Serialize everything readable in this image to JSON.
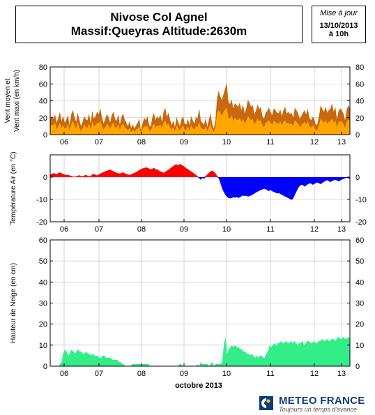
{
  "header": {
    "title_line1": "Nivose Col Agnel",
    "title_line2": "Massif:Queyras Altitude:2630m",
    "update_label": "Mise à jour",
    "update_date": "13/10/2013",
    "update_time": "à 10h"
  },
  "footer": {
    "brand": "METEO FRANCE",
    "tagline": "Toujours un temps d'avance",
    "brand_color": "#0b3d7a"
  },
  "x_axis": {
    "day_labels": [
      "06",
      "07",
      "08",
      "09",
      "10",
      "11",
      "12",
      "13"
    ],
    "month_label": "octobre 2013"
  },
  "chart_data": [
    {
      "type": "area",
      "ylabel": "Vent moyen et Vent maxi (en km/h)",
      "ylim": [
        0,
        80
      ],
      "yticks": [
        0,
        20,
        40,
        60,
        80
      ],
      "grid": true,
      "colors": {
        "max": "#c8690f",
        "mean": "#ffa500"
      },
      "series": [
        {
          "key": "max",
          "values": [
            17,
            22,
            19,
            24,
            14,
            20,
            27,
            16,
            22,
            14,
            18,
            23,
            11,
            24,
            29,
            21,
            15,
            26,
            18,
            10,
            15,
            22,
            18,
            17,
            25,
            13,
            28,
            19,
            22,
            27,
            24,
            31,
            20,
            13,
            19,
            24,
            21,
            14,
            23,
            27,
            19,
            16,
            24,
            12,
            21,
            25,
            18,
            14,
            10,
            16,
            8,
            12,
            7,
            11,
            14,
            19,
            5,
            13,
            20,
            17,
            22,
            12,
            9,
            20,
            26,
            17,
            22,
            19,
            24,
            15,
            27,
            32,
            21,
            26,
            18,
            11,
            17,
            9,
            21,
            15,
            10,
            18,
            22,
            13,
            12,
            19,
            11,
            22,
            17,
            13,
            21,
            19,
            31,
            16,
            14,
            12,
            20,
            9,
            18,
            25,
            13,
            7,
            17,
            43,
            52,
            45,
            41,
            48,
            55,
            61,
            39,
            36,
            42,
            31,
            37,
            35,
            33,
            38,
            29,
            36,
            25,
            31,
            41,
            38,
            33,
            35,
            24,
            28,
            36,
            30,
            33,
            22,
            19,
            26,
            28,
            32,
            27,
            23,
            31,
            29,
            26,
            25,
            30,
            22,
            29,
            33,
            25,
            27,
            24,
            26,
            20,
            32,
            29,
            25,
            19,
            22,
            26,
            29,
            24,
            31,
            20,
            17,
            21,
            19,
            11,
            13,
            23,
            35,
            30,
            27,
            33,
            26,
            29,
            31,
            37,
            27,
            33,
            18,
            28,
            31,
            29,
            25,
            17,
            29,
            35,
            30
          ]
        },
        {
          "key": "mean",
          "values": [
            9,
            12,
            11,
            14,
            6,
            10,
            14,
            8,
            11,
            7,
            8,
            13,
            5,
            12,
            16,
            11,
            7,
            15,
            8,
            4,
            7,
            12,
            9,
            8,
            13,
            6,
            15,
            10,
            11,
            14,
            13,
            16,
            10,
            6,
            9,
            13,
            11,
            7,
            12,
            14,
            9,
            8,
            13,
            6,
            11,
            13,
            9,
            7,
            5,
            8,
            3,
            6,
            3,
            6,
            7,
            10,
            2,
            7,
            10,
            9,
            11,
            6,
            4,
            10,
            13,
            8,
            11,
            10,
            12,
            8,
            14,
            17,
            11,
            13,
            9,
            6,
            9,
            4,
            11,
            8,
            5,
            9,
            11,
            6,
            6,
            10,
            5,
            11,
            8,
            6,
            10,
            9,
            15,
            8,
            7,
            6,
            10,
            4,
            9,
            13,
            6,
            3,
            9,
            24,
            29,
            26,
            22,
            27,
            30,
            32,
            20,
            19,
            23,
            16,
            20,
            18,
            17,
            20,
            15,
            19,
            13,
            16,
            22,
            20,
            17,
            19,
            12,
            15,
            19,
            16,
            17,
            11,
            9,
            14,
            15,
            17,
            14,
            12,
            16,
            15,
            13,
            13,
            16,
            11,
            15,
            17,
            13,
            14,
            12,
            13,
            10,
            17,
            15,
            13,
            9,
            11,
            13,
            15,
            12,
            16,
            10,
            8,
            11,
            9,
            5,
            6,
            12,
            19,
            16,
            14,
            17,
            13,
            15,
            16,
            19,
            14,
            17,
            9,
            15,
            16,
            15,
            13,
            8,
            15,
            18,
            16
          ]
        }
      ]
    },
    {
      "type": "area",
      "ylabel": "Température Air (en °C)",
      "ylim": [
        -20,
        10
      ],
      "yticks": [
        -20,
        -10,
        0
      ],
      "grid": true,
      "colors": {
        "positive": "#ff0000",
        "negative": "#0000ff"
      },
      "series": [
        {
          "key": "temperature",
          "values": [
            1.2,
            1.5,
            1.8,
            1.6,
            1.3,
            1.9,
            2.1,
            1.8,
            1.4,
            1.2,
            0.9,
            1.1,
            0.8,
            0.6,
            0.3,
            0.2,
            0.4,
            0.6,
            0.9,
            0.5,
            0.3,
            0.8,
            1.0,
            0.7,
            0.4,
            0.6,
            1.2,
            1.5,
            1.0,
            0.8,
            1.3,
            1.6,
            2.0,
            2.3,
            2.6,
            2.9,
            3.1,
            3.4,
            3.0,
            2.7,
            2.3,
            2.0,
            1.8,
            1.6,
            1.9,
            2.2,
            1.7,
            1.4,
            1.2,
            1.0,
            1.3,
            1.6,
            1.9,
            2.3,
            2.7,
            3.2,
            3.6,
            3.9,
            4.1,
            4.4,
            4.2,
            3.9,
            3.5,
            3.8,
            4.1,
            3.7,
            3.4,
            3.0,
            2.6,
            2.3,
            2.0,
            2.4,
            2.9,
            3.4,
            3.9,
            4.4,
            5.0,
            5.5,
            5.8,
            5.3,
            5.9,
            5.6,
            5.1,
            4.6,
            4.0,
            3.6,
            3.1,
            2.6,
            2.1,
            1.6,
            1.0,
            0.4,
            -0.5,
            -1.2,
            -0.3,
            -0.8,
            0.6,
            1.2,
            2.0,
            2.6,
            2.9,
            2.5,
            1.8,
            0.6,
            -0.5,
            -2.5,
            -4.8,
            -6.5,
            -7.8,
            -8.8,
            -9.3,
            -9.5,
            -9.4,
            -9.0,
            -9.2,
            -8.9,
            -9.3,
            -9.1,
            -8.6,
            -8.2,
            -8.5,
            -8.3,
            -8.7,
            -8.5,
            -8.2,
            -7.8,
            -7.4,
            -6.9,
            -6.5,
            -6.2,
            -5.8,
            -5.5,
            -5.2,
            -5.4,
            -5.9,
            -6.2,
            -5.8,
            -6.3,
            -6.6,
            -6.9,
            -7.3,
            -7.1,
            -7.5,
            -7.9,
            -8.3,
            -8.7,
            -9.0,
            -9.4,
            -9.8,
            -10.2,
            -9.6,
            -8.0,
            -6.5,
            -5.0,
            -4.0,
            -3.4,
            -3.6,
            -4.2,
            -3.8,
            -3.2,
            -2.8,
            -2.9,
            -3.4,
            -3.1,
            -2.6,
            -2.4,
            -2.8,
            -3.1,
            -2.6,
            -2.1,
            -1.6,
            -1.4,
            -1.8,
            -2.2,
            -1.8,
            -1.4,
            -1.2,
            -1.5,
            -1.9,
            -1.5,
            -1.1,
            -0.8,
            -0.5,
            -0.3,
            -0.5,
            -0.7
          ]
        }
      ]
    },
    {
      "type": "area",
      "ylabel": "Hauteur de Neige (en cm)",
      "ylim": [
        0,
        60
      ],
      "yticks": [
        0,
        10,
        20,
        30,
        40,
        50,
        60
      ],
      "grid": true,
      "colors": {
        "snow": "#33ee88"
      },
      "series": [
        {
          "key": "snow_depth",
          "values": [
            0,
            0,
            0,
            0,
            0,
            0,
            1,
            2,
            6,
            8,
            7,
            5,
            6,
            8,
            7,
            6,
            7,
            8,
            7,
            7,
            6,
            6,
            7,
            6,
            6,
            5,
            6,
            5,
            5,
            5,
            4,
            4,
            5,
            5,
            4,
            4,
            4,
            4,
            3,
            3,
            3,
            3,
            2,
            2,
            1,
            1,
            0,
            0,
            0,
            0,
            1,
            1,
            1,
            1,
            1,
            1,
            1,
            1,
            1,
            1,
            1,
            0,
            0,
            0,
            0,
            0,
            0,
            0,
            0,
            0,
            0,
            0,
            0,
            0,
            0,
            0,
            0,
            0,
            0,
            1,
            1,
            0,
            0,
            0,
            0,
            0,
            0,
            0,
            0,
            0,
            1,
            0,
            2,
            1,
            1,
            1,
            1,
            0,
            1,
            2,
            0,
            1,
            1,
            1,
            1,
            2,
            10,
            14,
            6,
            8,
            9,
            10,
            9,
            10,
            9,
            9,
            8,
            8,
            7,
            7,
            6,
            6,
            5,
            6,
            5,
            4,
            5,
            4,
            5,
            5,
            4,
            4,
            6,
            7,
            10,
            9,
            10,
            11,
            10,
            11,
            11,
            12,
            11,
            11,
            12,
            11,
            11,
            12,
            11,
            12,
            11,
            10,
            11,
            11,
            12,
            10,
            11,
            12,
            12,
            11,
            11,
            12,
            11,
            11,
            12,
            12,
            13,
            12,
            12,
            13,
            12,
            12,
            13,
            13,
            12,
            13,
            14,
            13,
            13,
            14,
            13,
            13,
            14,
            13
          ]
        }
      ]
    }
  ]
}
